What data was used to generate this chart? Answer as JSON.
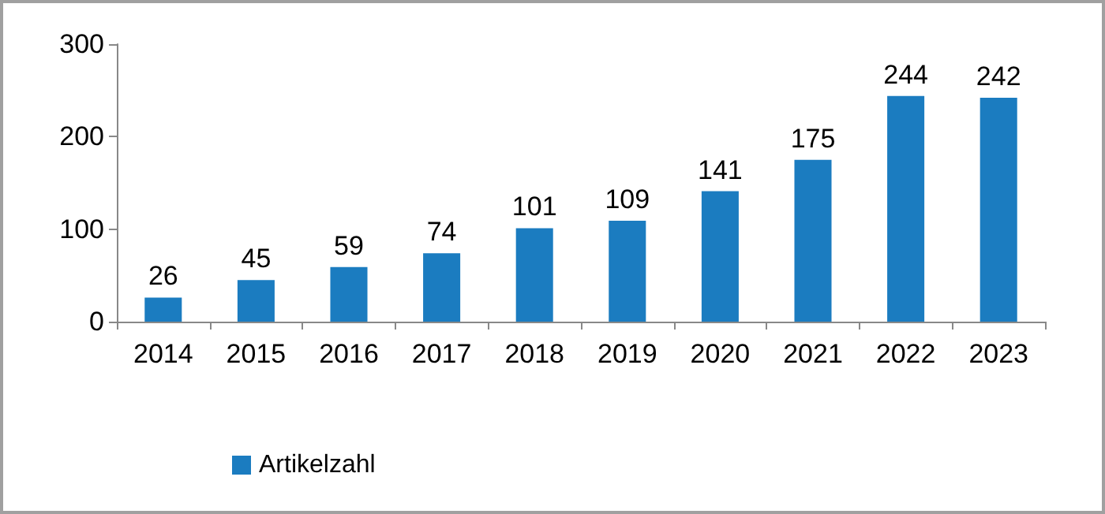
{
  "chart_data": {
    "type": "bar",
    "categories": [
      "2014",
      "2015",
      "2016",
      "2017",
      "2018",
      "2019",
      "2020",
      "2021",
      "2022",
      "2023"
    ],
    "series": [
      {
        "name": "Artikelzahl",
        "color": "#1b7cc0",
        "values": [
          26,
          45,
          59,
          74,
          101,
          109,
          141,
          175,
          244,
          242
        ]
      }
    ],
    "ylim": [
      0,
      300
    ],
    "yticks": [
      0,
      100,
      200,
      300
    ],
    "grid": false,
    "legend": "bottom left",
    "data_labels": true
  }
}
